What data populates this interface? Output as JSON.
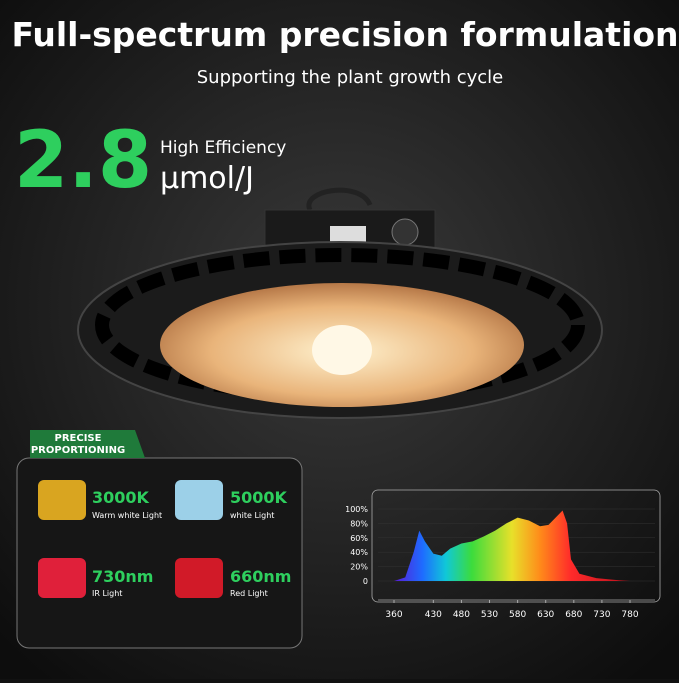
{
  "header": {
    "title": "Full-spectrum precision formulation",
    "subtitle": "Supporting the plant growth cycle"
  },
  "efficiency": {
    "value": "2.8",
    "label": "High Efficiency",
    "unit": "μmol/J"
  },
  "badge": {
    "lines": [
      "PRECISE",
      "PROPORTIONING"
    ]
  },
  "items": [
    {
      "title": "3000K",
      "label": "Warm white Light"
    },
    {
      "title": "5000K",
      "label": "white Light"
    },
    {
      "title": "730nm",
      "label": "IR Light"
    },
    {
      "title": "660nm",
      "label": "Red Light"
    }
  ],
  "spectrum_chart": {
    "type": "area",
    "x": [
      360,
      380,
      395,
      405,
      415,
      430,
      445,
      460,
      480,
      500,
      520,
      540,
      560,
      580,
      600,
      620,
      635,
      650,
      660,
      668,
      675,
      690,
      720,
      760,
      780
    ],
    "values": [
      0,
      5,
      40,
      70,
      55,
      38,
      35,
      45,
      52,
      55,
      62,
      70,
      80,
      88,
      84,
      76,
      78,
      90,
      98,
      80,
      30,
      10,
      4,
      1,
      0
    ],
    "xlim": [
      360,
      780
    ],
    "xticks": [
      360,
      430,
      480,
      530,
      580,
      630,
      680,
      730,
      780
    ],
    "ylim": [
      0,
      100
    ],
    "yticks": [
      {
        "value": 0,
        "label": "0"
      },
      {
        "value": 20,
        "label": "20%"
      },
      {
        "value": 40,
        "label": "40%"
      },
      {
        "value": 60,
        "label": "60%"
      },
      {
        "value": 80,
        "label": "80%"
      },
      {
        "value": 100,
        "label": "100%"
      }
    ]
  }
}
